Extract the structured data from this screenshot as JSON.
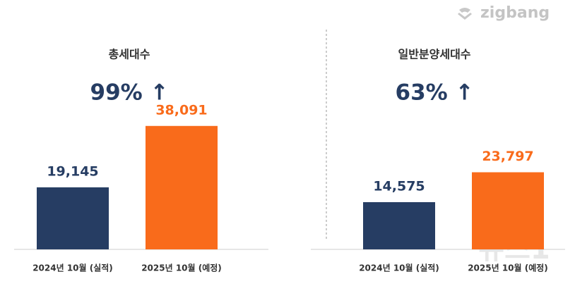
{
  "brand": "zigbang",
  "watermark": "뉴스1",
  "chart_data": [
    {
      "type": "bar",
      "title": "총세대수",
      "annotation": "99% ↑",
      "categories": [
        "2024년 10월 (실적)",
        "2025년 10월 (예정)"
      ],
      "values": [
        19145,
        38091
      ],
      "value_labels": [
        "19,145",
        "38,091"
      ],
      "colors": [
        "#263d63",
        "#f96b1b"
      ],
      "ylim": [
        0,
        40000
      ]
    },
    {
      "type": "bar",
      "title": "일반분양세대수",
      "annotation": "63% ↑",
      "categories": [
        "2024년 10월 (실적)",
        "2025년 10월 (예정)"
      ],
      "values": [
        14575,
        23797
      ],
      "value_labels": [
        "14,575",
        "23,797"
      ],
      "colors": [
        "#263d63",
        "#f96b1b"
      ],
      "ylim": [
        0,
        40000
      ]
    }
  ]
}
